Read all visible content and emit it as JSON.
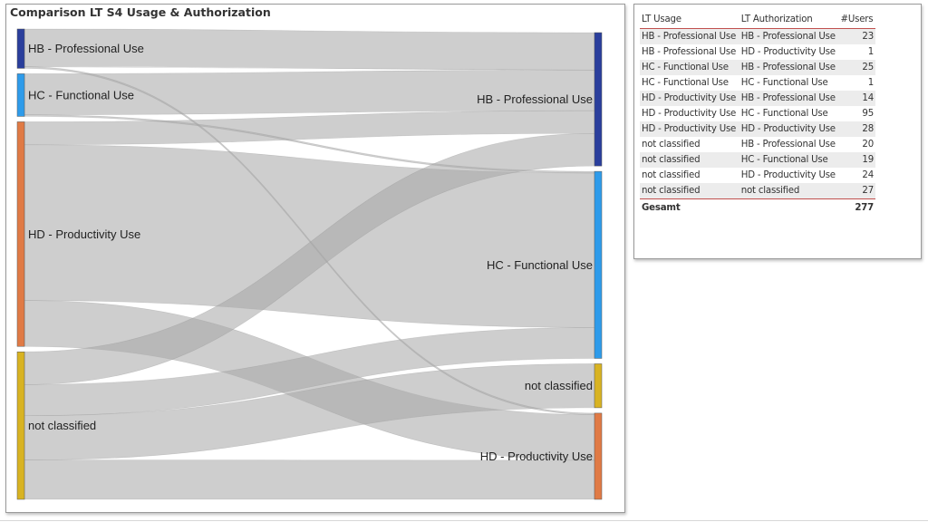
{
  "chart_data": {
    "type": "sankey",
    "title": "Comparison LT S4 Usage & Authorization",
    "source_nodes": [
      {
        "key": "HB",
        "label": "HB - Professional Use",
        "color": "#2a3e9c"
      },
      {
        "key": "HC",
        "label": "HC - Functional Use",
        "color": "#2e9bea"
      },
      {
        "key": "HD",
        "label": "HD - Productivity Use",
        "color": "#e07a45"
      },
      {
        "key": "NC",
        "label": "not classified",
        "color": "#d8b322"
      }
    ],
    "target_nodes": [
      {
        "key": "HB",
        "label": "HB - Professional Use",
        "color": "#2a3e9c"
      },
      {
        "key": "HC",
        "label": "HC - Functional Use",
        "color": "#2e9bea"
      },
      {
        "key": "NC",
        "label": "not classified",
        "color": "#d8b322"
      },
      {
        "key": "HD",
        "label": "HD - Productivity Use",
        "color": "#e07a45"
      }
    ],
    "links": [
      {
        "source": "HB",
        "target": "HB",
        "value": 23
      },
      {
        "source": "HB",
        "target": "HD",
        "value": 1
      },
      {
        "source": "HC",
        "target": "HB",
        "value": 25
      },
      {
        "source": "HC",
        "target": "HC",
        "value": 1
      },
      {
        "source": "HD",
        "target": "HB",
        "value": 14
      },
      {
        "source": "HD",
        "target": "HC",
        "value": 95
      },
      {
        "source": "HD",
        "target": "HD",
        "value": 28
      },
      {
        "source": "NC",
        "target": "HB",
        "value": 20
      },
      {
        "source": "NC",
        "target": "HC",
        "value": 19
      },
      {
        "source": "NC",
        "target": "HD",
        "value": 24
      },
      {
        "source": "NC",
        "target": "NC",
        "value": 27
      }
    ],
    "link_color": "#a6a6a6"
  },
  "table": {
    "headers": {
      "usage": "LT Usage",
      "authorization": "LT Authorization",
      "users": "#Users"
    },
    "rows": [
      {
        "usage": "HB - Professional Use",
        "authorization": "HB - Professional Use",
        "users": "23"
      },
      {
        "usage": "HB - Professional Use",
        "authorization": "HD - Productivity Use",
        "users": "1"
      },
      {
        "usage": "HC - Functional Use",
        "authorization": "HB - Professional Use",
        "users": "25"
      },
      {
        "usage": "HC - Functional Use",
        "authorization": "HC - Functional Use",
        "users": "1"
      },
      {
        "usage": "HD - Productivity Use",
        "authorization": "HB - Professional Use",
        "users": "14"
      },
      {
        "usage": "HD - Productivity Use",
        "authorization": "HC - Functional Use",
        "users": "95"
      },
      {
        "usage": "HD - Productivity Use",
        "authorization": "HD - Productivity Use",
        "users": "28"
      },
      {
        "usage": "not classified",
        "authorization": "HB - Professional Use",
        "users": "20"
      },
      {
        "usage": "not classified",
        "authorization": "HC - Functional Use",
        "users": "19"
      },
      {
        "usage": "not classified",
        "authorization": "HD - Productivity Use",
        "users": "24"
      },
      {
        "usage": "not classified",
        "authorization": "not classified",
        "users": "27"
      }
    ],
    "total_label": "Gesamt",
    "total_value": "277"
  }
}
